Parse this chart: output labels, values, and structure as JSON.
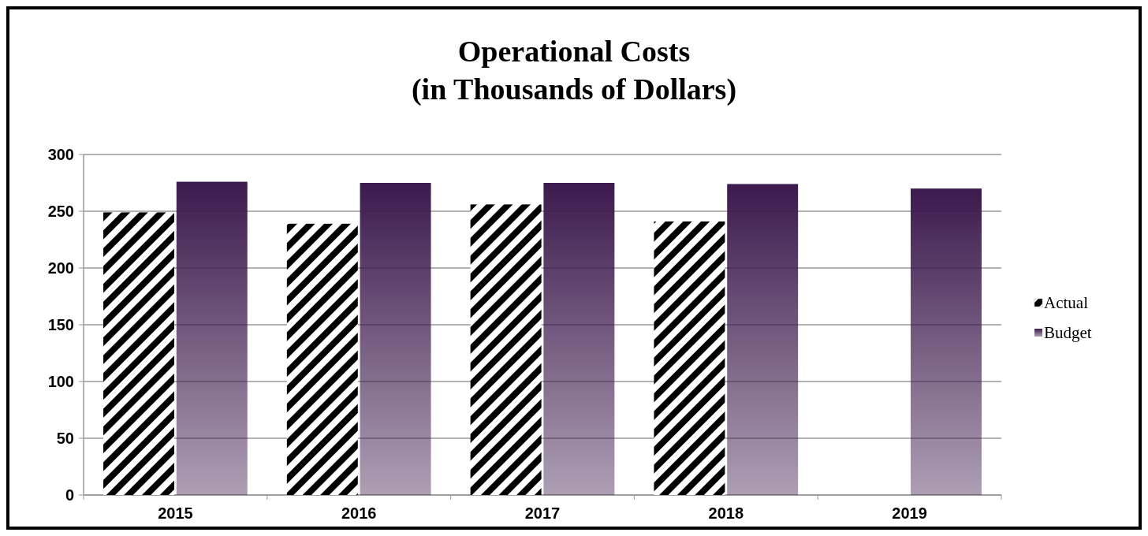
{
  "chart_data": {
    "type": "bar",
    "title": "Operational Costs\n(in Thousands of Dollars)",
    "categories": [
      "2015",
      "2016",
      "2017",
      "2018",
      "2019"
    ],
    "series": [
      {
        "name": "Actual",
        "color": "#000000",
        "values": [
          249,
          239,
          256,
          241,
          null
        ]
      },
      {
        "name": "Budget",
        "color": "#3d1a4d",
        "values": [
          276,
          275,
          275,
          274,
          270
        ]
      }
    ],
    "ylim": [
      0,
      300
    ],
    "yticks": [
      0,
      50,
      100,
      150,
      200,
      250,
      300
    ],
    "grid": "y",
    "legend": "right"
  }
}
